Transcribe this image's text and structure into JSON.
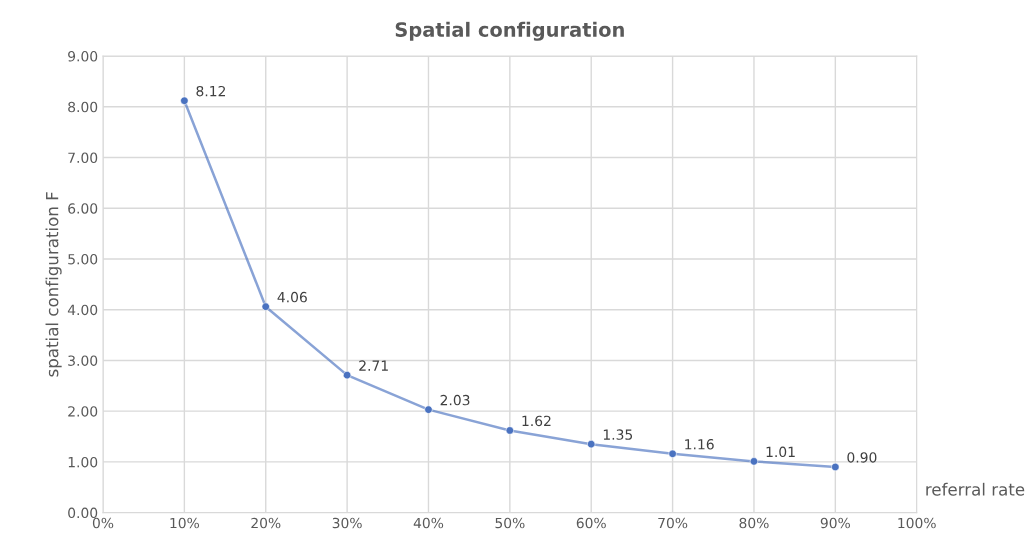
{
  "chart_data": {
    "type": "line",
    "title": "Spatial configuration",
    "xlabel": "referral rate",
    "ylabel": "spatial configuration F",
    "x": [
      10,
      20,
      30,
      40,
      50,
      60,
      70,
      80,
      90
    ],
    "series": [
      {
        "color": "#4a72c0",
        "values": [
          8.12,
          4.06,
          2.71,
          2.03,
          1.62,
          1.35,
          1.16,
          1.01,
          0.9
        ],
        "value_labels": [
          "8.12",
          "4.06",
          "2.71",
          "2.03",
          "1.62",
          "1.35",
          "1.16",
          "1.01",
          "0.90"
        ]
      }
    ],
    "xlim": [
      0,
      100
    ],
    "xticks": [
      {
        "value": 0,
        "label": "0%"
      },
      {
        "value": 10,
        "label": "10%"
      },
      {
        "value": 20,
        "label": "20%"
      },
      {
        "value": 30,
        "label": "30%"
      },
      {
        "value": 40,
        "label": "40%"
      },
      {
        "value": 50,
        "label": "50%"
      },
      {
        "value": 60,
        "label": "60%"
      },
      {
        "value": 70,
        "label": "70%"
      },
      {
        "value": 80,
        "label": "80%"
      },
      {
        "value": 90,
        "label": "90%"
      },
      {
        "value": 100,
        "label": "100%"
      }
    ],
    "ylim": [
      0,
      9
    ],
    "yticks": [
      {
        "value": 0,
        "label": "0.00"
      },
      {
        "value": 1,
        "label": "1.00"
      },
      {
        "value": 2,
        "label": "2.00"
      },
      {
        "value": 3,
        "label": "3.00"
      },
      {
        "value": 4,
        "label": "4.00"
      },
      {
        "value": 5,
        "label": "5.00"
      },
      {
        "value": 6,
        "label": "6.00"
      },
      {
        "value": 7,
        "label": "7.00"
      },
      {
        "value": 8,
        "label": "8.00"
      },
      {
        "value": 9,
        "label": "9.00"
      }
    ],
    "grid": true,
    "marker": "circle",
    "line_style": "solid",
    "legend": false
  }
}
